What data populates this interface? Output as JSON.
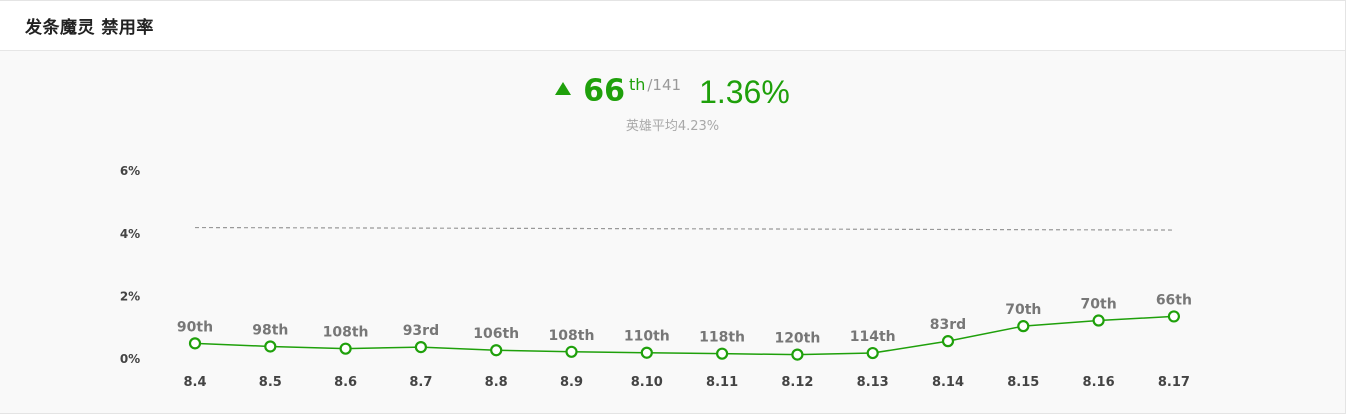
{
  "header": {
    "title": "发条魔灵 禁用率"
  },
  "summary": {
    "rank": "66",
    "rank_suffix": "th",
    "total": "/141",
    "rate": "1.36%",
    "trend": "up",
    "avg_text": "英雄平均4.23%"
  },
  "colors": {
    "accent": "#1fa00b",
    "average_line": "#999999",
    "background": "#f9f9f9"
  },
  "chart_data": {
    "type": "line",
    "categories": [
      "8.4",
      "8.5",
      "8.6",
      "8.7",
      "8.8",
      "8.9",
      "8.10",
      "8.11",
      "8.12",
      "8.13",
      "8.14",
      "8.15",
      "8.16",
      "8.17"
    ],
    "series": [
      {
        "values": [
          0.5,
          0.4,
          0.33,
          0.38,
          0.28,
          0.23,
          0.2,
          0.17,
          0.14,
          0.19,
          0.57,
          1.05,
          1.23,
          1.36
        ],
        "labels": [
          "90th",
          "98th",
          "108th",
          "93rd",
          "106th",
          "108th",
          "110th",
          "118th",
          "120th",
          "114th",
          "83rd",
          "70th",
          "70th",
          "66th"
        ]
      }
    ],
    "average": {
      "start": 4.2,
      "end": 4.12
    },
    "yticks": [
      "6%",
      "4%",
      "2%",
      "0%"
    ],
    "ytick_values": [
      6,
      4,
      2,
      0
    ],
    "ylim": [
      0,
      6
    ],
    "grid": false,
    "legend": "none"
  }
}
